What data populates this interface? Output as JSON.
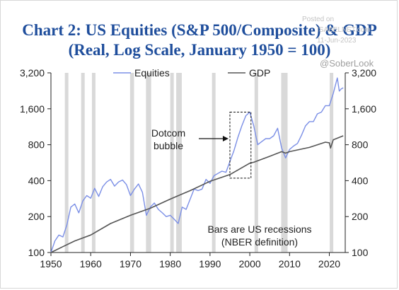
{
  "header": {
    "title_line1": "Chart 2: US Equities (S&P 500/Composite) & GDP",
    "title_line2": "(Real, Log Scale, January 1950 = 100)"
  },
  "watermark": {
    "line1": "Posted on",
    "line2": "ISABELNET.com",
    "line3": "11-Jun-2023",
    "handle": "@SoberLook"
  },
  "colors": {
    "equities": "#7b8fe6",
    "gdp": "#555555",
    "recession": "#d9d9d9",
    "title": "#1f4e9c"
  },
  "chart_data": {
    "type": "line",
    "title": "Chart 2: US Equities (S&P 500/Composite) & GDP",
    "subtitle": "(Real, Log Scale, January 1950 = 100)",
    "y_scale": "log",
    "ylim": [
      100,
      3200
    ],
    "xlim": [
      1950,
      2024
    ],
    "x_ticks": [
      1950,
      1960,
      1970,
      1980,
      1990,
      2000,
      2010,
      2020
    ],
    "x_tick_labels": [
      "1950",
      "1960",
      "1970",
      "1980",
      "1990",
      "2000",
      "2010",
      "2020"
    ],
    "y_ticks": [
      100,
      200,
      400,
      800,
      1600,
      3200
    ],
    "y_tick_labels": [
      "100",
      "200",
      "400",
      "800",
      "1,600",
      "3,200"
    ],
    "legend": {
      "placement": "top",
      "entries": [
        "Equities",
        "GDP"
      ]
    },
    "series": [
      {
        "name": "Equities",
        "color": "#7b8fe6",
        "points": [
          [
            1950,
            100
          ],
          [
            1951,
            125
          ],
          [
            1952,
            140
          ],
          [
            1953,
            135
          ],
          [
            1954,
            170
          ],
          [
            1955,
            240
          ],
          [
            1956,
            255
          ],
          [
            1957,
            215
          ],
          [
            1958,
            270
          ],
          [
            1959,
            300
          ],
          [
            1960,
            285
          ],
          [
            1961,
            345
          ],
          [
            1962,
            295
          ],
          [
            1963,
            355
          ],
          [
            1964,
            390
          ],
          [
            1965,
            410
          ],
          [
            1966,
            360
          ],
          [
            1967,
            390
          ],
          [
            1968,
            405
          ],
          [
            1969,
            370
          ],
          [
            1970,
            300
          ],
          [
            1971,
            340
          ],
          [
            1972,
            375
          ],
          [
            1973,
            320
          ],
          [
            1974,
            205
          ],
          [
            1975,
            240
          ],
          [
            1976,
            260
          ],
          [
            1977,
            230
          ],
          [
            1978,
            215
          ],
          [
            1979,
            200
          ],
          [
            1980,
            205
          ],
          [
            1981,
            190
          ],
          [
            1982,
            175
          ],
          [
            1983,
            240
          ],
          [
            1984,
            230
          ],
          [
            1985,
            280
          ],
          [
            1986,
            340
          ],
          [
            1987,
            330
          ],
          [
            1988,
            340
          ],
          [
            1989,
            410
          ],
          [
            1990,
            380
          ],
          [
            1991,
            440
          ],
          [
            1992,
            460
          ],
          [
            1993,
            480
          ],
          [
            1994,
            470
          ],
          [
            1995,
            580
          ],
          [
            1996,
            710
          ],
          [
            1997,
            920
          ],
          [
            1998,
            1150
          ],
          [
            1999,
            1400
          ],
          [
            2000,
            1500
          ],
          [
            2001,
            1150
          ],
          [
            2002,
            800
          ],
          [
            2003,
            850
          ],
          [
            2004,
            900
          ],
          [
            2005,
            900
          ],
          [
            2006,
            950
          ],
          [
            2007,
            1100
          ],
          [
            2008,
            750
          ],
          [
            2009,
            620
          ],
          [
            2010,
            730
          ],
          [
            2011,
            780
          ],
          [
            2012,
            820
          ],
          [
            2013,
            960
          ],
          [
            2014,
            1150
          ],
          [
            2015,
            1250
          ],
          [
            2016,
            1250
          ],
          [
            2017,
            1450
          ],
          [
            2018,
            1500
          ],
          [
            2019,
            1700
          ],
          [
            2020,
            1700
          ],
          [
            2021,
            2150
          ],
          [
            2022,
            2900
          ],
          [
            2022.5,
            2250
          ],
          [
            2023,
            2350
          ],
          [
            2023.5,
            2400
          ]
        ]
      },
      {
        "name": "GDP",
        "color": "#555555",
        "points": [
          [
            1950,
            100
          ],
          [
            1953,
            112
          ],
          [
            1956,
            125
          ],
          [
            1960,
            140
          ],
          [
            1965,
            175
          ],
          [
            1970,
            205
          ],
          [
            1975,
            235
          ],
          [
            1980,
            280
          ],
          [
            1985,
            330
          ],
          [
            1990,
            395
          ],
          [
            1995,
            450
          ],
          [
            2000,
            560
          ],
          [
            2001,
            570
          ],
          [
            2005,
            640
          ],
          [
            2008,
            700
          ],
          [
            2009,
            680
          ],
          [
            2010,
            700
          ],
          [
            2015,
            760
          ],
          [
            2019,
            840
          ],
          [
            2020,
            830
          ],
          [
            2020.3,
            750
          ],
          [
            2021,
            880
          ],
          [
            2023.5,
            950
          ]
        ]
      }
    ],
    "recessions": [
      [
        1953.5,
        1954.3
      ],
      [
        1957.6,
        1958.3
      ],
      [
        1960.3,
        1961.1
      ],
      [
        1969.9,
        1970.9
      ],
      [
        1973.9,
        1975.2
      ],
      [
        1980.0,
        1980.6
      ],
      [
        1981.5,
        1982.9
      ],
      [
        1990.5,
        1991.2
      ],
      [
        2001.2,
        2001.9
      ],
      [
        2007.9,
        2009.5
      ],
      [
        2020.1,
        2020.4
      ]
    ],
    "annotations": [
      {
        "id": "dotcom",
        "text_line1": "Dotcom",
        "text_line2": "bubble",
        "box_x": [
          1995,
          2000.3
        ],
        "box_y": [
          420,
          1500
        ],
        "arrow_to": [
          1995,
          900
        ]
      },
      {
        "id": "recession_note",
        "text_line1": "Bars are US recessions",
        "text_line2": "(NBER definition)"
      }
    ]
  }
}
